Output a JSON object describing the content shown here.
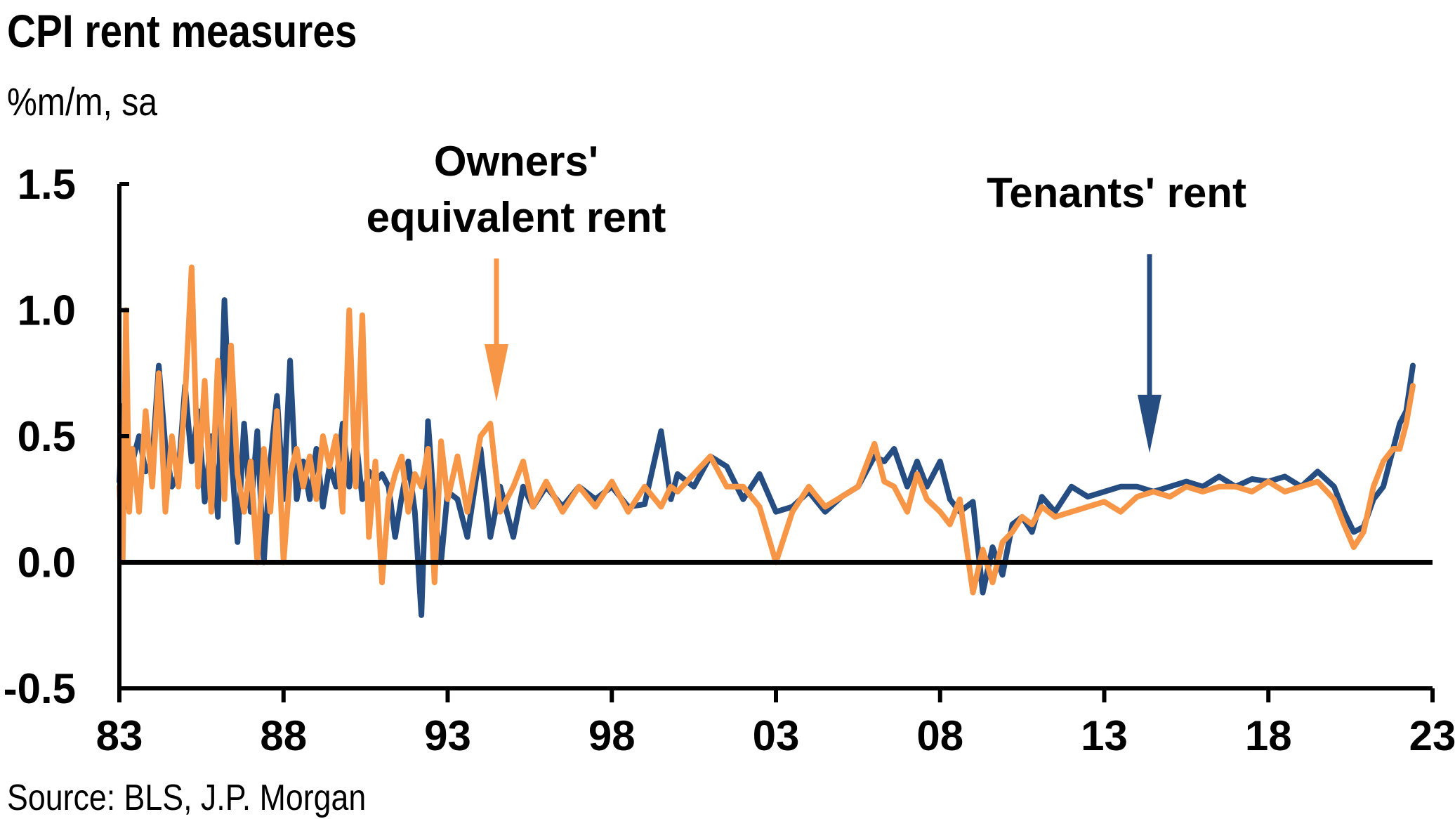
{
  "title": "CPI rent measures",
  "subtitle": "%m/m, sa",
  "source": "Source: BLS, J.P. Morgan",
  "colors": {
    "tenants": "#264d82",
    "oer": "#f79646",
    "axis": "#000000"
  },
  "annotations": {
    "oer_line1": "Owners'",
    "oer_line2": "equivalent rent",
    "tenants": "Tenants' rent"
  },
  "chart_data": {
    "type": "line",
    "title": "CPI rent measures",
    "ylabel": "%m/m, sa",
    "xlim": [
      1983,
      2023
    ],
    "ylim": [
      -0.5,
      1.5
    ],
    "x_ticks": [
      1983,
      1988,
      1993,
      1998,
      2003,
      2008,
      2013,
      2018,
      2023
    ],
    "x_tick_labels": [
      "83",
      "88",
      "93",
      "98",
      "03",
      "08",
      "13",
      "18",
      "23"
    ],
    "y_ticks": [
      -0.5,
      0.0,
      0.5,
      1.0,
      1.5
    ],
    "y_tick_labels": [
      "-0.5",
      "0.0",
      "0.5",
      "1.0",
      "1.5"
    ],
    "grid": false,
    "series": [
      {
        "name": "Tenants' rent",
        "x": [
          1983.0,
          1983.1,
          1983.2,
          1983.3,
          1983.4,
          1983.6,
          1983.8,
          1984.0,
          1984.2,
          1984.4,
          1984.6,
          1984.8,
          1985.0,
          1985.2,
          1985.4,
          1985.6,
          1985.8,
          1986.0,
          1986.2,
          1986.4,
          1986.6,
          1986.8,
          1987.0,
          1987.2,
          1987.4,
          1987.6,
          1987.8,
          1988.0,
          1988.2,
          1988.4,
          1988.6,
          1988.8,
          1989.0,
          1989.2,
          1989.4,
          1989.6,
          1989.8,
          1990.0,
          1990.2,
          1990.4,
          1990.6,
          1990.8,
          1991.0,
          1991.2,
          1991.4,
          1991.6,
          1991.8,
          1992.0,
          1992.2,
          1992.4,
          1992.6,
          1992.8,
          1993.0,
          1993.3,
          1993.6,
          1994.0,
          1994.3,
          1994.6,
          1995.0,
          1995.3,
          1995.6,
          1996.0,
          1996.5,
          1997.0,
          1997.5,
          1998.0,
          1998.5,
          1999.0,
          1999.5,
          1999.8,
          2000.0,
          2000.5,
          2001.0,
          2001.5,
          2002.0,
          2002.5,
          2003.0,
          2003.5,
          2004.0,
          2004.5,
          2005.0,
          2005.5,
          2006.0,
          2006.3,
          2006.6,
          2007.0,
          2007.3,
          2007.6,
          2008.0,
          2008.3,
          2008.6,
          2009.0,
          2009.3,
          2009.6,
          2009.9,
          2010.2,
          2010.5,
          2010.8,
          2011.1,
          2011.5,
          2012.0,
          2012.5,
          2013.0,
          2013.5,
          2014.0,
          2014.5,
          2015.0,
          2015.5,
          2016.0,
          2016.5,
          2017.0,
          2017.5,
          2018.0,
          2018.5,
          2019.0,
          2019.5,
          2020.0,
          2020.3,
          2020.6,
          2020.9,
          2021.2,
          2021.5,
          2021.8,
          2022.0,
          2022.2,
          2022.4
        ],
        "values": [
          0.32,
          0.62,
          0.22,
          0.45,
          0.4,
          0.5,
          0.36,
          0.4,
          0.78,
          0.46,
          0.3,
          0.35,
          0.7,
          0.4,
          0.6,
          0.24,
          0.5,
          0.18,
          1.04,
          0.44,
          0.08,
          0.55,
          0.2,
          0.52,
          0.0,
          0.4,
          0.66,
          0.25,
          0.8,
          0.25,
          0.4,
          0.25,
          0.45,
          0.22,
          0.38,
          0.3,
          0.55,
          0.3,
          0.5,
          0.25,
          0.36,
          0.32,
          0.35,
          0.3,
          0.1,
          0.26,
          0.4,
          0.2,
          -0.21,
          0.56,
          0.2,
          0.0,
          0.28,
          0.25,
          0.1,
          0.45,
          0.1,
          0.3,
          0.1,
          0.3,
          0.22,
          0.3,
          0.22,
          0.3,
          0.25,
          0.3,
          0.22,
          0.23,
          0.52,
          0.25,
          0.35,
          0.3,
          0.42,
          0.38,
          0.25,
          0.35,
          0.2,
          0.22,
          0.28,
          0.2,
          0.26,
          0.3,
          0.42,
          0.4,
          0.45,
          0.3,
          0.4,
          0.3,
          0.4,
          0.25,
          0.2,
          0.24,
          -0.12,
          0.06,
          -0.05,
          0.15,
          0.18,
          0.12,
          0.26,
          0.2,
          0.3,
          0.26,
          0.28,
          0.3,
          0.3,
          0.28,
          0.3,
          0.32,
          0.3,
          0.34,
          0.3,
          0.33,
          0.32,
          0.34,
          0.3,
          0.36,
          0.3,
          0.2,
          0.12,
          0.14,
          0.25,
          0.3,
          0.45,
          0.55,
          0.6,
          0.78
        ]
      },
      {
        "name": "Owners' equivalent rent",
        "x": [
          1983.0,
          1983.1,
          1983.2,
          1983.3,
          1983.4,
          1983.6,
          1983.8,
          1984.0,
          1984.2,
          1984.4,
          1984.6,
          1984.8,
          1985.0,
          1985.2,
          1985.4,
          1985.6,
          1985.8,
          1986.0,
          1986.2,
          1986.4,
          1986.6,
          1986.8,
          1987.0,
          1987.2,
          1987.4,
          1987.6,
          1987.8,
          1988.0,
          1988.2,
          1988.4,
          1988.6,
          1988.8,
          1989.0,
          1989.2,
          1989.4,
          1989.6,
          1989.8,
          1990.0,
          1990.2,
          1990.4,
          1990.6,
          1990.8,
          1991.0,
          1991.2,
          1991.4,
          1991.6,
          1991.8,
          1992.0,
          1992.2,
          1992.4,
          1992.6,
          1992.8,
          1993.0,
          1993.3,
          1993.6,
          1994.0,
          1994.3,
          1994.6,
          1995.0,
          1995.3,
          1995.6,
          1996.0,
          1996.5,
          1997.0,
          1997.5,
          1998.0,
          1998.5,
          1999.0,
          1999.5,
          1999.8,
          2000.0,
          2000.5,
          2001.0,
          2001.5,
          2002.0,
          2002.5,
          2003.0,
          2003.5,
          2004.0,
          2004.5,
          2005.0,
          2005.5,
          2006.0,
          2006.3,
          2006.6,
          2007.0,
          2007.3,
          2007.6,
          2008.0,
          2008.3,
          2008.6,
          2009.0,
          2009.3,
          2009.6,
          2009.9,
          2010.2,
          2010.5,
          2010.8,
          2011.1,
          2011.5,
          2012.0,
          2012.5,
          2013.0,
          2013.5,
          2014.0,
          2014.5,
          2015.0,
          2015.5,
          2016.0,
          2016.5,
          2017.0,
          2017.5,
          2018.0,
          2018.5,
          2019.0,
          2019.5,
          2020.0,
          2020.3,
          2020.6,
          2020.9,
          2021.2,
          2021.5,
          2021.8,
          2022.0,
          2022.2,
          2022.4
        ],
        "values": [
          0.3,
          0.0,
          1.0,
          0.2,
          0.45,
          0.2,
          0.6,
          0.3,
          0.75,
          0.2,
          0.5,
          0.3,
          0.65,
          1.17,
          0.3,
          0.72,
          0.2,
          0.8,
          0.25,
          0.86,
          0.35,
          0.2,
          0.4,
          0.0,
          0.45,
          0.2,
          0.6,
          0.0,
          0.35,
          0.45,
          0.3,
          0.42,
          0.25,
          0.5,
          0.38,
          0.5,
          0.2,
          1.0,
          0.3,
          0.98,
          0.1,
          0.4,
          -0.08,
          0.25,
          0.35,
          0.42,
          0.2,
          0.35,
          0.3,
          0.45,
          -0.08,
          0.48,
          0.25,
          0.42,
          0.2,
          0.5,
          0.55,
          0.2,
          0.3,
          0.4,
          0.22,
          0.32,
          0.2,
          0.3,
          0.22,
          0.32,
          0.2,
          0.3,
          0.22,
          0.3,
          0.28,
          0.35,
          0.42,
          0.3,
          0.3,
          0.22,
          0.0,
          0.2,
          0.3,
          0.22,
          0.26,
          0.3,
          0.47,
          0.32,
          0.3,
          0.2,
          0.35,
          0.25,
          0.2,
          0.15,
          0.25,
          -0.12,
          0.05,
          -0.08,
          0.08,
          0.12,
          0.18,
          0.15,
          0.22,
          0.18,
          0.2,
          0.22,
          0.24,
          0.2,
          0.26,
          0.28,
          0.26,
          0.3,
          0.28,
          0.3,
          0.3,
          0.28,
          0.32,
          0.28,
          0.3,
          0.32,
          0.25,
          0.15,
          0.06,
          0.12,
          0.3,
          0.4,
          0.45,
          0.45,
          0.55,
          0.7
        ]
      }
    ]
  }
}
